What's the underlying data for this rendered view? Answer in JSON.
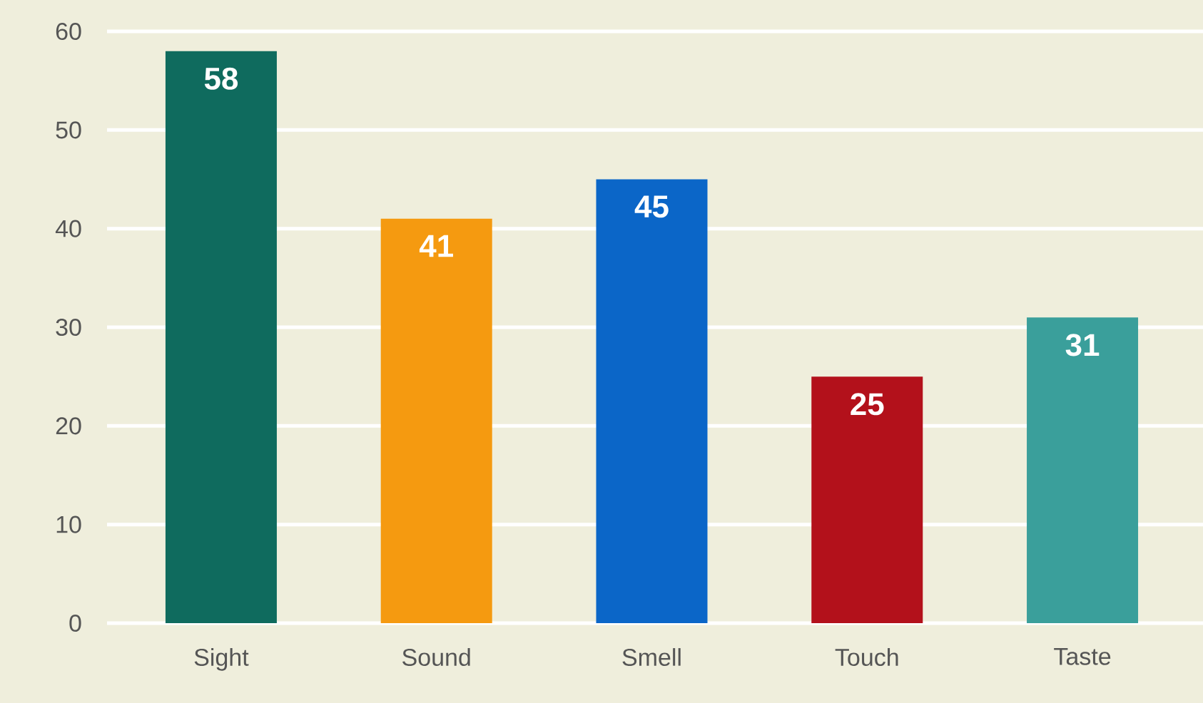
{
  "chart_data": {
    "type": "bar",
    "categories": [
      "Sight",
      "Sound",
      "Smell",
      "Touch",
      "Taste"
    ],
    "values": [
      58,
      41,
      45,
      25,
      31
    ],
    "colors": [
      "#0f6b5e",
      "#f59a10",
      "#0b66c8",
      "#b3111b",
      "#3a9f9b"
    ],
    "ylim": [
      0,
      60
    ],
    "yticks": [
      0,
      10,
      20,
      30,
      40,
      50,
      60
    ],
    "grid": "y",
    "data_labels": true
  }
}
